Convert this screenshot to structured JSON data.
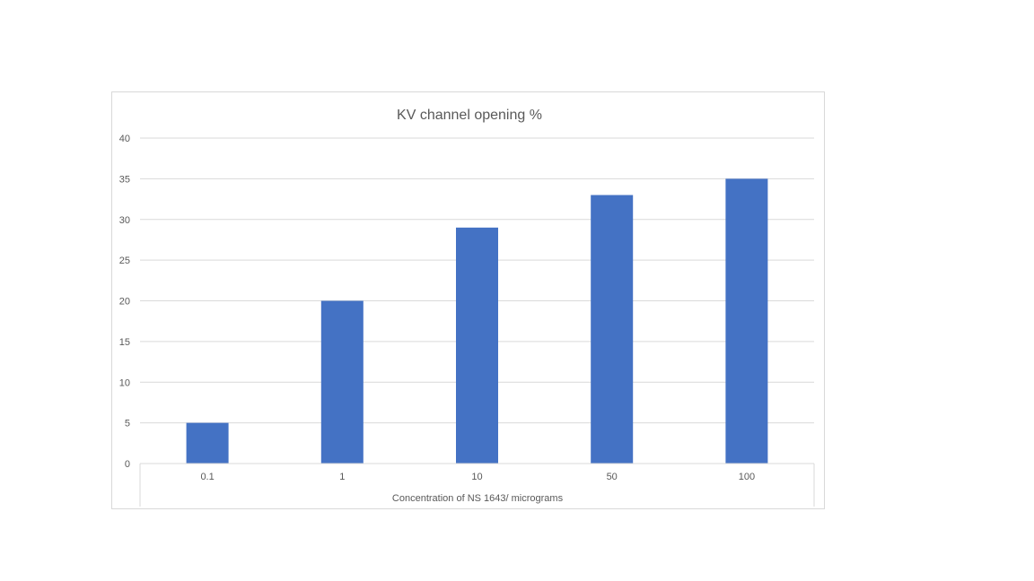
{
  "chart_data": {
    "type": "bar",
    "title": "KV channel opening %",
    "xlabel": "Concentration of NS 1643/ micrograms",
    "ylabel": "",
    "categories": [
      "0.1",
      "1",
      "10",
      "50",
      "100"
    ],
    "values": [
      5,
      20,
      29,
      33,
      35
    ],
    "ylim": [
      0,
      40
    ],
    "yticks": [
      0,
      5,
      10,
      15,
      20,
      25,
      30,
      35,
      40
    ],
    "grid": true,
    "legend": "none",
    "bar_color": "#4472c4",
    "grid_color": "#d9d9d9"
  }
}
